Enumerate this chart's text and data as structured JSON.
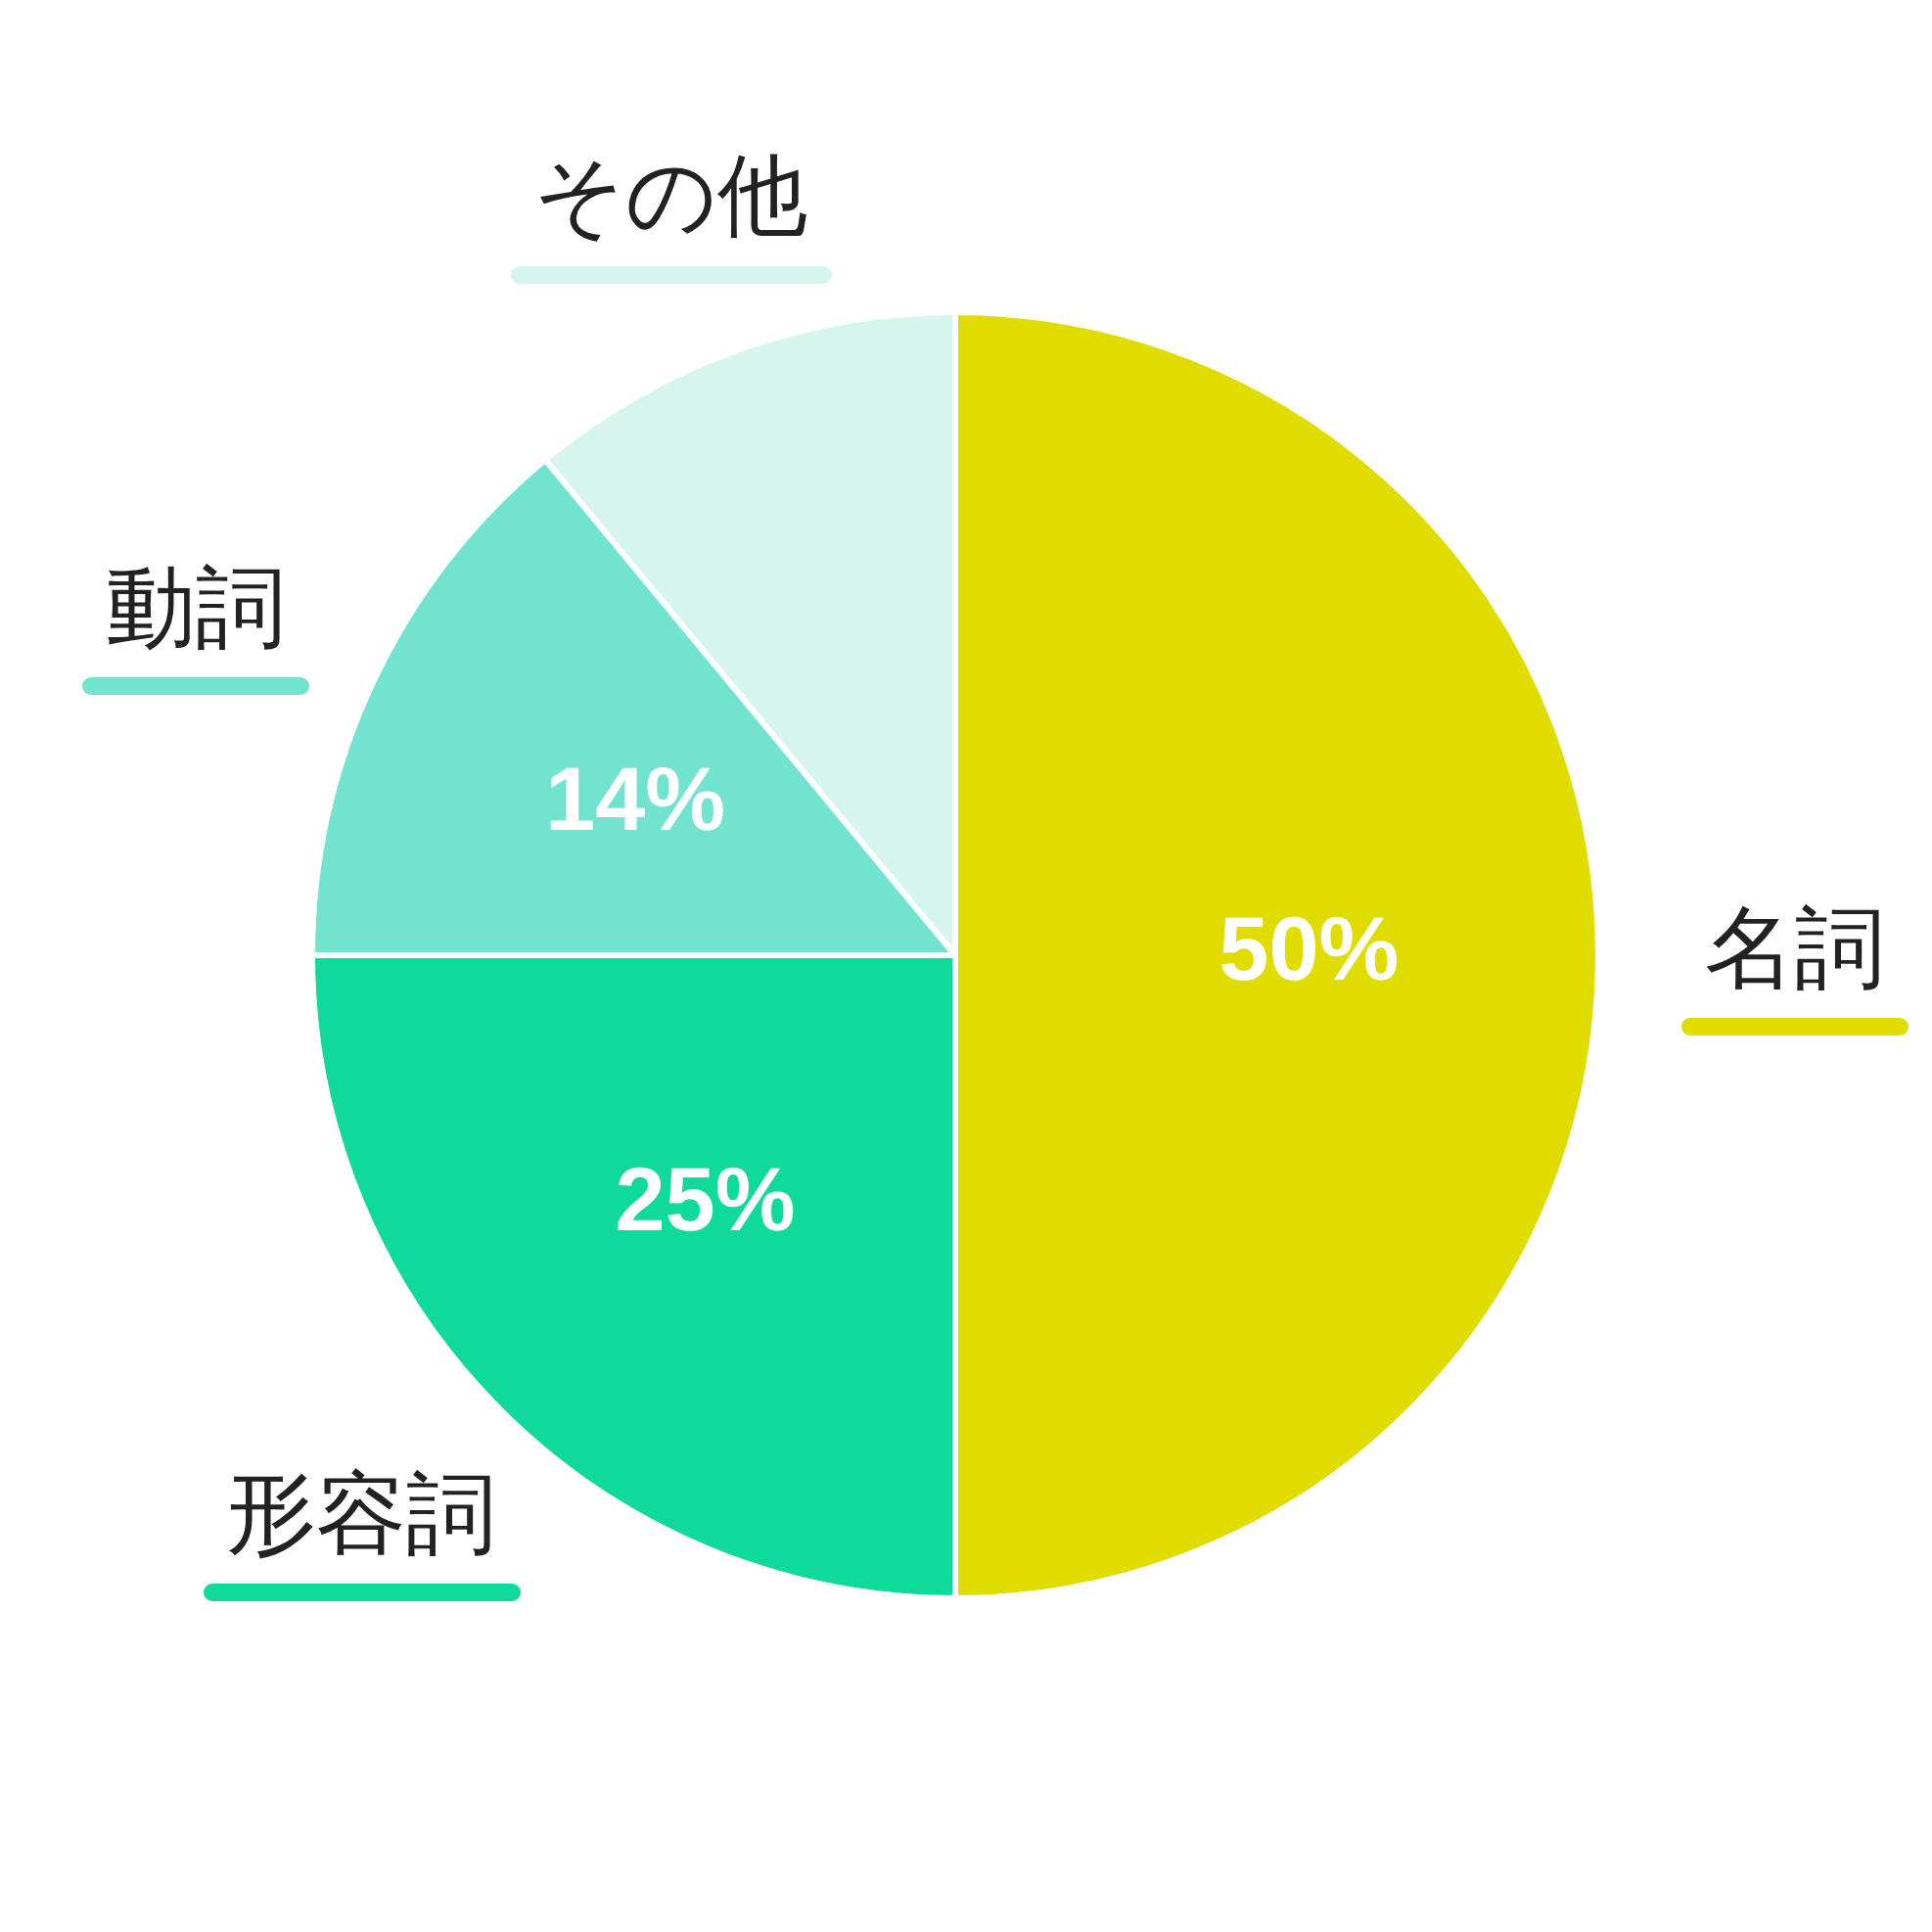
{
  "chart_data": {
    "type": "pie",
    "categories": [
      "名詞",
      "形容詞",
      "動詞",
      "その他"
    ],
    "values": [
      50,
      25,
      14,
      11
    ],
    "colors": [
      "#e0dc00",
      "#10d99c",
      "#72e3cf",
      "#d6f5ec"
    ],
    "value_labels": [
      "50%",
      "25%",
      "14%",
      null
    ],
    "legend": false
  }
}
